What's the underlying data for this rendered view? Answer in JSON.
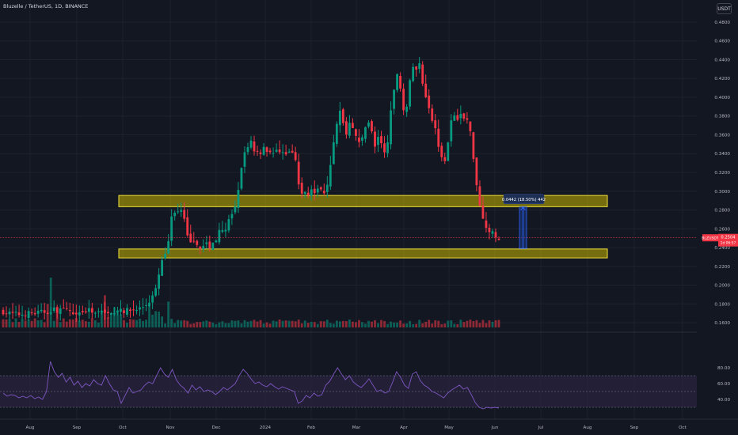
{
  "header": {
    "symbol_title": "Bluzelle / TetherUS, 1D, BINANCE",
    "currency_label": "USDT"
  },
  "price_scale": {
    "ticks": [
      "0.4800",
      "0.4600",
      "0.4400",
      "0.4200",
      "0.4000",
      "0.3800",
      "0.3600",
      "0.3400",
      "0.3200",
      "0.3000",
      "0.2800",
      "0.2600",
      "0.2400",
      "0.2200",
      "0.2000",
      "0.1800",
      "0.1600"
    ]
  },
  "rsi_scale": {
    "ticks": [
      "80.00",
      "60.00",
      "40.00"
    ]
  },
  "time_axis": {
    "labels": [
      "Aug",
      "Sep",
      "Oct",
      "Nov",
      "Dec",
      "2024",
      "Feb",
      "Mar",
      "Apr",
      "May",
      "Jun",
      "Jul",
      "Aug",
      "Sep",
      "Oct"
    ]
  },
  "current_price": {
    "symbol": "BLZUSDT",
    "value": "0.2504",
    "countdown": "1d 06:57"
  },
  "measure_label": "0.0442 (18.50%) 442",
  "colors": {
    "background": "#131722",
    "up": "#089981",
    "down": "#f23645",
    "zone_fill": "#c8b400",
    "zone_border": "#f0e03c",
    "rsi_line": "#7e57c2",
    "rsi_band": "#2a2440",
    "measure": "#2962ff"
  },
  "chart_data": {
    "type": "candlestick",
    "title": "Bluzelle / TetherUS, 1D, BINANCE",
    "price_range": [
      0.155,
      0.485
    ],
    "rsi_range": [
      25,
      90
    ],
    "support_resistance_zones": [
      {
        "low": 0.2835,
        "high": 0.2955
      },
      {
        "low": 0.229,
        "high": 0.2385
      }
    ],
    "rsi_bands": [
      30,
      50,
      70
    ],
    "measurement": {
      "from": 0.239,
      "to": 0.2832,
      "change": 0.0442,
      "percent": 18.5,
      "bars": 442
    },
    "close_path": [
      [
        0,
        0.172
      ],
      [
        8,
        0.17
      ],
      [
        16,
        0.169
      ],
      [
        24,
        0.169
      ],
      [
        32,
        0.17
      ],
      [
        40,
        0.17
      ],
      [
        48,
        0.171
      ],
      [
        56,
        0.172
      ],
      [
        64,
        0.174
      ],
      [
        72,
        0.173
      ],
      [
        80,
        0.1725
      ],
      [
        88,
        0.172
      ],
      [
        96,
        0.1715
      ],
      [
        104,
        0.172
      ],
      [
        112,
        0.173
      ],
      [
        120,
        0.172
      ],
      [
        128,
        0.173
      ],
      [
        136,
        0.173
      ],
      [
        144,
        0.172
      ],
      [
        152,
        0.172
      ],
      [
        160,
        0.173
      ],
      [
        168,
        0.174
      ],
      [
        176,
        0.176
      ],
      [
        184,
        0.181
      ],
      [
        190,
        0.188
      ],
      [
        196,
        0.2
      ],
      [
        200,
        0.22
      ],
      [
        204,
        0.24
      ],
      [
        208,
        0.23
      ],
      [
        212,
        0.26
      ],
      [
        216,
        0.285
      ],
      [
        220,
        0.275
      ],
      [
        224,
        0.28
      ],
      [
        228,
        0.278
      ],
      [
        232,
        0.26
      ],
      [
        236,
        0.245
      ],
      [
        240,
        0.25
      ],
      [
        244,
        0.24
      ],
      [
        248,
        0.245
      ],
      [
        252,
        0.238
      ],
      [
        256,
        0.242
      ],
      [
        260,
        0.245
      ],
      [
        264,
        0.24
      ],
      [
        268,
        0.248
      ],
      [
        272,
        0.25
      ],
      [
        276,
        0.26
      ],
      [
        280,
        0.255
      ],
      [
        284,
        0.265
      ],
      [
        288,
        0.27
      ],
      [
        292,
        0.275
      ],
      [
        296,
        0.285
      ],
      [
        300,
        0.305
      ],
      [
        304,
        0.33
      ],
      [
        308,
        0.345
      ],
      [
        312,
        0.35
      ],
      [
        316,
        0.355
      ],
      [
        320,
        0.34
      ],
      [
        324,
        0.345
      ],
      [
        328,
        0.34
      ],
      [
        332,
        0.35
      ],
      [
        336,
        0.34
      ],
      [
        340,
        0.345
      ],
      [
        344,
        0.34
      ],
      [
        348,
        0.345
      ],
      [
        352,
        0.338
      ],
      [
        356,
        0.345
      ],
      [
        360,
        0.34
      ],
      [
        364,
        0.342
      ],
      [
        368,
        0.34
      ],
      [
        372,
        0.33
      ],
      [
        376,
        0.305
      ],
      [
        380,
        0.295
      ],
      [
        384,
        0.3
      ],
      [
        388,
        0.298
      ],
      [
        392,
        0.305
      ],
      [
        396,
        0.298
      ],
      [
        400,
        0.3
      ],
      [
        404,
        0.305
      ],
      [
        408,
        0.299
      ],
      [
        412,
        0.31
      ],
      [
        416,
        0.33
      ],
      [
        420,
        0.35
      ],
      [
        424,
        0.37
      ],
      [
        428,
        0.385
      ],
      [
        432,
        0.375
      ],
      [
        436,
        0.36
      ],
      [
        440,
        0.375
      ],
      [
        444,
        0.37
      ],
      [
        448,
        0.36
      ],
      [
        452,
        0.35
      ],
      [
        456,
        0.355
      ],
      [
        460,
        0.37
      ],
      [
        464,
        0.375
      ],
      [
        468,
        0.365
      ],
      [
        472,
        0.345
      ],
      [
        476,
        0.36
      ],
      [
        480,
        0.35
      ],
      [
        484,
        0.34
      ],
      [
        488,
        0.35
      ],
      [
        492,
        0.38
      ],
      [
        496,
        0.4
      ],
      [
        500,
        0.43
      ],
      [
        504,
        0.415
      ],
      [
        508,
        0.39
      ],
      [
        512,
        0.385
      ],
      [
        516,
        0.41
      ],
      [
        520,
        0.435
      ],
      [
        524,
        0.425
      ],
      [
        528,
        0.44
      ],
      [
        532,
        0.42
      ],
      [
        536,
        0.405
      ],
      [
        540,
        0.395
      ],
      [
        544,
        0.38
      ],
      [
        548,
        0.37
      ],
      [
        552,
        0.355
      ],
      [
        556,
        0.34
      ],
      [
        560,
        0.33
      ],
      [
        564,
        0.345
      ],
      [
        568,
        0.37
      ],
      [
        572,
        0.38
      ],
      [
        576,
        0.375
      ],
      [
        580,
        0.385
      ],
      [
        584,
        0.375
      ],
      [
        588,
        0.38
      ],
      [
        592,
        0.37
      ],
      [
        596,
        0.35
      ],
      [
        600,
        0.32
      ],
      [
        604,
        0.29
      ],
      [
        608,
        0.28
      ],
      [
        612,
        0.265
      ],
      [
        616,
        0.255
      ],
      [
        620,
        0.26
      ],
      [
        624,
        0.25
      ],
      [
        628,
        0.2504
      ]
    ],
    "rsi_path": [
      [
        0,
        48
      ],
      [
        5,
        44
      ],
      [
        10,
        46
      ],
      [
        15,
        45
      ],
      [
        20,
        42
      ],
      [
        25,
        44
      ],
      [
        30,
        42
      ],
      [
        35,
        45
      ],
      [
        40,
        41
      ],
      [
        45,
        43
      ],
      [
        50,
        40
      ],
      [
        55,
        50
      ],
      [
        60,
        88
      ],
      [
        65,
        75
      ],
      [
        70,
        68
      ],
      [
        75,
        73
      ],
      [
        80,
        62
      ],
      [
        85,
        68
      ],
      [
        90,
        58
      ],
      [
        95,
        63
      ],
      [
        100,
        55
      ],
      [
        105,
        60
      ],
      [
        110,
        57
      ],
      [
        115,
        65
      ],
      [
        120,
        60
      ],
      [
        125,
        58
      ],
      [
        130,
        70
      ],
      [
        135,
        60
      ],
      [
        140,
        52
      ],
      [
        145,
        50
      ],
      [
        150,
        35
      ],
      [
        155,
        45
      ],
      [
        160,
        55
      ],
      [
        165,
        48
      ],
      [
        170,
        50
      ],
      [
        175,
        52
      ],
      [
        180,
        58
      ],
      [
        185,
        62
      ],
      [
        190,
        60
      ],
      [
        195,
        70
      ],
      [
        200,
        80
      ],
      [
        205,
        72
      ],
      [
        210,
        68
      ],
      [
        215,
        78
      ],
      [
        220,
        65
      ],
      [
        225,
        58
      ],
      [
        230,
        54
      ],
      [
        235,
        48
      ],
      [
        240,
        58
      ],
      [
        245,
        52
      ],
      [
        250,
        56
      ],
      [
        255,
        50
      ],
      [
        260,
        52
      ],
      [
        265,
        50
      ],
      [
        270,
        46
      ],
      [
        275,
        50
      ],
      [
        280,
        55
      ],
      [
        285,
        52
      ],
      [
        290,
        56
      ],
      [
        295,
        60
      ],
      [
        300,
        70
      ],
      [
        305,
        78
      ],
      [
        310,
        73
      ],
      [
        315,
        66
      ],
      [
        320,
        60
      ],
      [
        325,
        62
      ],
      [
        330,
        58
      ],
      [
        335,
        56
      ],
      [
        340,
        60
      ],
      [
        345,
        56
      ],
      [
        350,
        53
      ],
      [
        355,
        56
      ],
      [
        360,
        54
      ],
      [
        365,
        52
      ],
      [
        370,
        50
      ],
      [
        375,
        35
      ],
      [
        380,
        38
      ],
      [
        385,
        45
      ],
      [
        390,
        42
      ],
      [
        395,
        48
      ],
      [
        400,
        44
      ],
      [
        405,
        46
      ],
      [
        410,
        58
      ],
      [
        415,
        63
      ],
      [
        420,
        72
      ],
      [
        425,
        80
      ],
      [
        430,
        72
      ],
      [
        435,
        65
      ],
      [
        440,
        70
      ],
      [
        445,
        62
      ],
      [
        450,
        58
      ],
      [
        455,
        55
      ],
      [
        460,
        60
      ],
      [
        465,
        66
      ],
      [
        470,
        58
      ],
      [
        475,
        50
      ],
      [
        480,
        52
      ],
      [
        485,
        48
      ],
      [
        490,
        50
      ],
      [
        495,
        62
      ],
      [
        500,
        75
      ],
      [
        505,
        68
      ],
      [
        510,
        58
      ],
      [
        515,
        54
      ],
      [
        520,
        72
      ],
      [
        525,
        75
      ],
      [
        530,
        64
      ],
      [
        535,
        58
      ],
      [
        540,
        55
      ],
      [
        545,
        50
      ],
      [
        550,
        48
      ],
      [
        555,
        45
      ],
      [
        560,
        42
      ],
      [
        565,
        48
      ],
      [
        570,
        52
      ],
      [
        575,
        55
      ],
      [
        580,
        58
      ],
      [
        585,
        53
      ],
      [
        590,
        55
      ],
      [
        595,
        46
      ],
      [
        600,
        36
      ],
      [
        605,
        30
      ],
      [
        610,
        28
      ],
      [
        615,
        30
      ],
      [
        620,
        29
      ],
      [
        625,
        30
      ],
      [
        630,
        29
      ]
    ]
  }
}
